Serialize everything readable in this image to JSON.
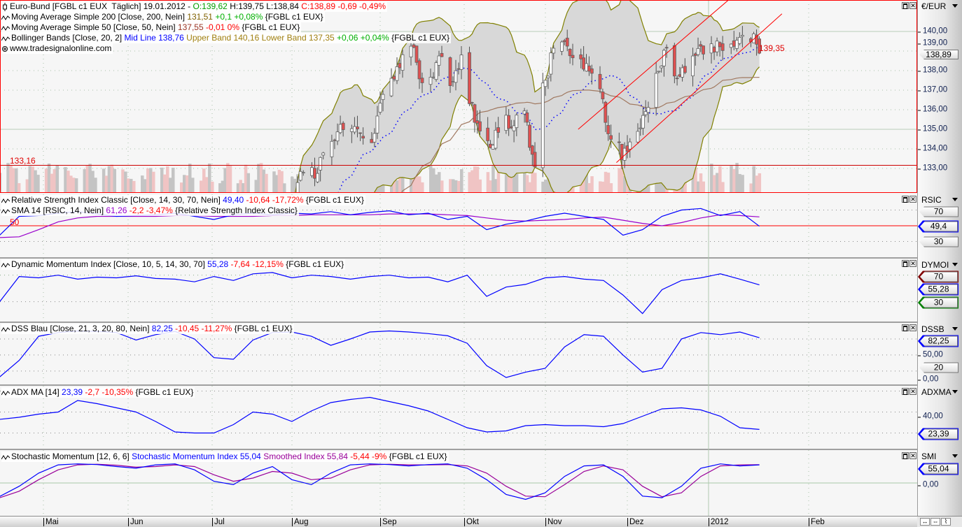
{
  "price_pane": {
    "legend": [
      {
        "icon": "candle-icon",
        "parts": [
          {
            "t": "Euro-Bund [FGBL c1 EUX  Täglich] 19.01.2012 - ",
            "c": "#000000"
          },
          {
            "t": "O:139,62 ",
            "c": "#00a000"
          },
          {
            "t": "H:139,75 L:138,84 ",
            "c": "#000000"
          },
          {
            "t": "C:138,89 -0,69 -0,49%",
            "c": "#ff0000"
          }
        ]
      },
      {
        "icon": "indicator-wave-icon",
        "parts": [
          {
            "t": "Moving Average Simple 200 [Close, 200, Nein] ",
            "c": "#000000"
          },
          {
            "t": "131,51 ",
            "c": "#806000"
          },
          {
            "t": "+0,1 +0,08% ",
            "c": "#00b000"
          },
          {
            "t": "{FGBL c1 EUX}",
            "c": "#000000"
          }
        ]
      },
      {
        "icon": "indicator-wave-icon",
        "parts": [
          {
            "t": "Moving Average Simple 50 [Close, 50, Nein] ",
            "c": "#000000"
          },
          {
            "t": "137,55 ",
            "c": "#993322"
          },
          {
            "t": "-0,01 0% ",
            "c": "#ff0000"
          },
          {
            "t": "{FGBL c1 EUX}",
            "c": "#000000"
          }
        ]
      },
      {
        "icon": "indicator-wave-icon",
        "parts": [
          {
            "t": "Bollinger Bands [Close, 20, 2] ",
            "c": "#000000"
          },
          {
            "t": "Mid Line 138,76 ",
            "c": "#0000ff"
          },
          {
            "t": "Upper Band 140,16 Lower Band 137,35 ",
            "c": "#a08010"
          },
          {
            "t": "+0,06 +0,04% ",
            "c": "#00b000"
          },
          {
            "t": "{FGBL c1 EUX}",
            "c": "#000000"
          }
        ]
      },
      {
        "icon": "copyright-icon",
        "parts": [
          {
            "t": "www.tradesignalonline.com",
            "c": "#000000"
          }
        ]
      }
    ],
    "axis_title": "€/EUR",
    "current_price_tag": "138,89",
    "hline_label": "133,16",
    "trendline_label": "139,35",
    "axis_labels": [
      "140,00",
      "139,00",
      "138,00",
      "137,00",
      "136,00",
      "135,00",
      "134,00",
      "133,00"
    ]
  },
  "rsi_pane": {
    "legend": [
      {
        "icon": "indicator-wave-icon",
        "parts": [
          {
            "t": "Relative Strength Index Classic [Close, 14, 30, 70, Nein] ",
            "c": "#000000"
          },
          {
            "t": "49,40 ",
            "c": "#0000ff"
          },
          {
            "t": "-10,64 -17,72% ",
            "c": "#ff0000"
          },
          {
            "t": "{FGBL c1 EUX}",
            "c": "#000000"
          }
        ]
      },
      {
        "icon": "indicator-wave-icon",
        "parts": [
          {
            "t": "SMA 14 [RSIC, 14, Nein] ",
            "c": "#000000"
          },
          {
            "t": "61,26 ",
            "c": "#9900cc"
          },
          {
            "t": "-2,2 -3,47% ",
            "c": "#ff0000"
          },
          {
            "t": "{Relative Strength Index Classic}",
            "c": "#000000"
          }
        ]
      }
    ],
    "axis_title": "RSIC",
    "level_label": "50",
    "tags": {
      "upper": "70",
      "value": "49,4",
      "lower": "30"
    }
  },
  "dymoi_pane": {
    "legend": [
      {
        "icon": "indicator-wave-icon",
        "parts": [
          {
            "t": "Dynamic Momentum Index [Close, 10, 5, 14, 30, 70] ",
            "c": "#000000"
          },
          {
            "t": "55,28 ",
            "c": "#0000ff"
          },
          {
            "t": "-7,64 -12,15% ",
            "c": "#ff0000"
          },
          {
            "t": "{FGBL c1 EUX}",
            "c": "#000000"
          }
        ]
      }
    ],
    "axis_title": "DYMOI",
    "tags": {
      "upper": "70",
      "value": "55,28",
      "lower": "30"
    }
  },
  "dssb_pane": {
    "legend": [
      {
        "icon": "indicator-wave-icon",
        "parts": [
          {
            "t": "DSS Blau [Close, 21, 3, 20, 80, Nein] ",
            "c": "#000000"
          },
          {
            "t": "82,25 ",
            "c": "#0000ff"
          },
          {
            "t": "-10,45 -11,27% ",
            "c": "#ff0000"
          },
          {
            "t": "{FGBL c1 EUX}",
            "c": "#000000"
          }
        ]
      }
    ],
    "axis_title": "DSSB",
    "tags": {
      "value": "82,25",
      "lower": "20"
    },
    "axis_labels": [
      "50,00",
      "0,00"
    ]
  },
  "adx_pane": {
    "legend": [
      {
        "icon": "indicator-wave-icon",
        "parts": [
          {
            "t": "ADX MA [14] ",
            "c": "#000000"
          },
          {
            "t": "23,39 ",
            "c": "#0000ff"
          },
          {
            "t": "-2,7 -10,35% ",
            "c": "#ff0000"
          },
          {
            "t": "{FGBL c1 EUX}",
            "c": "#000000"
          }
        ]
      }
    ],
    "axis_title": "ADXMA",
    "tags": {
      "value": "23,39"
    },
    "axis_labels": [
      "40,00"
    ]
  },
  "smi_pane": {
    "legend": [
      {
        "icon": "indicator-wave-icon",
        "parts": [
          {
            "t": "Stochastic Momentum [12, 6, 6] ",
            "c": "#000000"
          },
          {
            "t": "Stochastic Momentum Index 55,04 ",
            "c": "#0000ff"
          },
          {
            "t": "Smoothed Index 55,84 ",
            "c": "#990099"
          },
          {
            "t": "-5,44 -9% ",
            "c": "#ff0000"
          },
          {
            "t": "{FGBL c1 EUX}",
            "c": "#000000"
          }
        ]
      }
    ],
    "axis_title": "SMI",
    "tags": {
      "value": "55,04"
    },
    "axis_labels": [
      "0,00"
    ]
  },
  "time_axis": {
    "months": [
      "Mai",
      "Jun",
      "Jul",
      "Aug",
      "Sep",
      "Okt",
      "Nov",
      "Dez",
      "2012",
      "Feb"
    ]
  },
  "colors": {
    "up": "#ffffff",
    "down": "#e05050",
    "bollinger_fill": "#d8d8d8",
    "bollinger_line": "#808000",
    "mid_line": "#0000ff",
    "sma50": "#a07860",
    "trendline": "#ff0000",
    "selected_border": "#ff0000"
  },
  "chart_data": {
    "type": "candlestick",
    "symbol": "Euro-Bund [FGBL c1 EUX]",
    "last_bar": {
      "date": "2012-01-19",
      "open": 139.62,
      "high": 139.75,
      "low": 138.84,
      "close": 138.89
    },
    "closes": [
      [
        "2011-08-04",
        132.5
      ],
      [
        "2011-08-10",
        133.0
      ],
      [
        "2011-08-16",
        134.5
      ],
      [
        "2011-08-19",
        135.0
      ],
      [
        "2011-08-29",
        134.5
      ],
      [
        "2011-09-01",
        136.0
      ],
      [
        "2011-09-05",
        137.5
      ],
      [
        "2011-09-09",
        138.5
      ],
      [
        "2011-09-13",
        139.0
      ],
      [
        "2011-09-15",
        137.5
      ],
      [
        "2011-09-20",
        138.0
      ],
      [
        "2011-09-22",
        139.0
      ],
      [
        "2011-09-26",
        137.0
      ],
      [
        "2011-09-30",
        138.5
      ],
      [
        "2011-10-03",
        136.5
      ],
      [
        "2011-10-07",
        135.0
      ],
      [
        "2011-10-10",
        134.0
      ],
      [
        "2011-10-14",
        135.0
      ],
      [
        "2011-10-19",
        135.5
      ],
      [
        "2011-10-24",
        135.5
      ],
      [
        "2011-10-28",
        133.5
      ],
      [
        "2011-10-31",
        137.0
      ],
      [
        "2011-11-03",
        138.5
      ],
      [
        "2011-11-08",
        139.5
      ],
      [
        "2011-11-11",
        138.5
      ],
      [
        "2011-11-16",
        138.5
      ],
      [
        "2011-11-21",
        137.0
      ],
      [
        "2011-11-24",
        135.0
      ],
      [
        "2011-11-28",
        134.0
      ],
      [
        "2011-11-29",
        133.8
      ],
      [
        "2011-12-02",
        134.5
      ],
      [
        "2011-12-06",
        135.5
      ],
      [
        "2011-12-09",
        136.5
      ],
      [
        "2011-12-13",
        138.3
      ],
      [
        "2011-12-16",
        139.0
      ],
      [
        "2011-12-21",
        137.5
      ],
      [
        "2011-12-23",
        138.2
      ],
      [
        "2011-12-29",
        138.8
      ],
      [
        "2012-01-02",
        139.5
      ],
      [
        "2012-01-05",
        139.0
      ],
      [
        "2012-01-09",
        139.3
      ],
      [
        "2012-01-11",
        139.8
      ],
      [
        "2012-01-13",
        140.1
      ],
      [
        "2012-01-17",
        139.7
      ],
      [
        "2012-01-19",
        138.89
      ]
    ],
    "horizontal_line": 133.16,
    "trendlines": [
      [
        [
          "2011-11-13",
          135.0
        ],
        [
          "2012-01-08",
          141.6
        ]
      ],
      [
        [
          "2011-11-27",
          133.3
        ],
        [
          "2012-01-27",
          140.9
        ]
      ]
    ],
    "price_ylim": [
      132.2,
      141.6
    ],
    "indicator_dates": [
      "2011-04-15",
      "2012-01-19"
    ],
    "rsi": {
      "ylim": [
        10,
        90
      ],
      "levels": [
        30,
        50,
        70
      ],
      "values": [
        38,
        62,
        63,
        66,
        68,
        65,
        62,
        63,
        64,
        66,
        62,
        58,
        64,
        66,
        64,
        66,
        65,
        68,
        64,
        67,
        69,
        64,
        66,
        58,
        62,
        45,
        52,
        56,
        62,
        66,
        62,
        58,
        38,
        45,
        62,
        70,
        72,
        63,
        68,
        49.4
      ],
      "sma": [
        35,
        36,
        45,
        55,
        60,
        62,
        62,
        62,
        62,
        63,
        63,
        62,
        62,
        62,
        63,
        63,
        64,
        64,
        64,
        64,
        65,
        65,
        65,
        64,
        63,
        60,
        57,
        56,
        57,
        58,
        60,
        61,
        57,
        53,
        50,
        54,
        60,
        64,
        63,
        61.26
      ]
    },
    "dymoi": {
      "ylim": [
        0,
        95
      ],
      "levels": [
        30,
        70
      ],
      "values": [
        30,
        68,
        66,
        70,
        64,
        67,
        66,
        69,
        65,
        64,
        60,
        68,
        62,
        72,
        74,
        66,
        70,
        68,
        64,
        68,
        70,
        66,
        67,
        60,
        70,
        38,
        52,
        56,
        66,
        68,
        64,
        62,
        40,
        12,
        48,
        62,
        66,
        72,
        64,
        55.28
      ]
    },
    "dssb": {
      "ylim": [
        -5,
        110
      ],
      "levels": [
        20,
        50,
        80
      ],
      "values": [
        9,
        40,
        85,
        92,
        95,
        94,
        92,
        78,
        88,
        94,
        80,
        45,
        42,
        78,
        92,
        93,
        85,
        68,
        80,
        93,
        95,
        93,
        90,
        86,
        72,
        30,
        8,
        18,
        25,
        65,
        88,
        85,
        50,
        18,
        25,
        80,
        92,
        88,
        93,
        82.25
      ]
    },
    "adx": {
      "ylim": [
        5,
        65
      ],
      "values": [
        33,
        35,
        38,
        40,
        51,
        48,
        44,
        40,
        31,
        21,
        20,
        20,
        28,
        40,
        38,
        31,
        41,
        49,
        52,
        54,
        50,
        46,
        41,
        33,
        25,
        21,
        22,
        27,
        28,
        27,
        27,
        26,
        29,
        36,
        43,
        44,
        42,
        36,
        25,
        23.39
      ]
    },
    "smi": {
      "ylim": [
        -100,
        100
      ],
      "level": 0,
      "values": [
        -41,
        -10,
        30,
        55,
        58,
        56,
        50,
        45,
        55,
        58,
        40,
        5,
        -5,
        30,
        50,
        10,
        -5,
        30,
        55,
        58,
        56,
        52,
        56,
        58,
        45,
        10,
        -35,
        -50,
        -30,
        20,
        52,
        55,
        20,
        -40,
        -45,
        -10,
        45,
        58,
        52,
        55.04
      ],
      "smoothed": [
        -45,
        -25,
        10,
        40,
        55,
        57,
        54,
        48,
        50,
        55,
        50,
        25,
        5,
        15,
        35,
        30,
        10,
        15,
        40,
        55,
        57,
        55,
        55,
        56,
        52,
        30,
        -10,
        -40,
        -42,
        -5,
        35,
        52,
        40,
        -10,
        -42,
        -30,
        20,
        52,
        55,
        55.84
      ]
    }
  }
}
